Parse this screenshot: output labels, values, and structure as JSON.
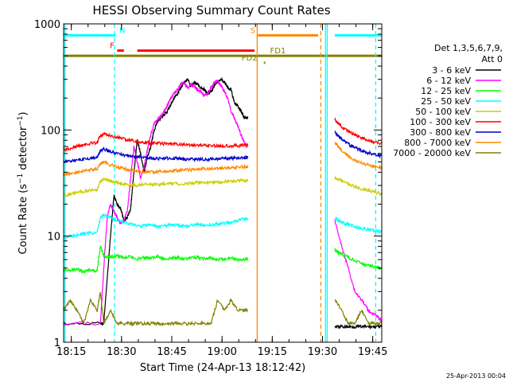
{
  "chart_data": {
    "type": "line",
    "title": "HESSI Observing Summary Count Rates",
    "xlabel": "Start Time (24-Apr-13 18:12:42)",
    "ylabel": "Count Rate (s⁻¹ detector⁻¹)",
    "ylabel_main": "Count Rate (s",
    "ylabel_mid": " detector",
    "ylabel_end": ")",
    "ylabel_sup": "−1",
    "yscale": "log",
    "xlim": [
      0,
      95
    ],
    "ylim": [
      1,
      1000
    ],
    "x_unit": "minutes after 18:12:42",
    "xticks": [
      {
        "t": 2.3,
        "label": "18:15"
      },
      {
        "t": 17.3,
        "label": "18:30"
      },
      {
        "t": 32.3,
        "label": "18:45"
      },
      {
        "t": 47.3,
        "label": "19:00"
      },
      {
        "t": 62.3,
        "label": "19:15"
      },
      {
        "t": 77.3,
        "label": "19:30"
      },
      {
        "t": 92.3,
        "label": "19:45"
      }
    ],
    "yticks": [
      {
        "v": 1,
        "label": "1"
      },
      {
        "v": 10,
        "label": "10"
      },
      {
        "v": 100,
        "label": "100"
      },
      {
        "v": 1000,
        "label": "1000"
      }
    ],
    "legend": {
      "position": "right",
      "header": [
        "Det 1,3,5,6,7,9,",
        "Att 0"
      ]
    },
    "series": [
      {
        "name": "3 - 6 keV",
        "color": "#000000",
        "segments": [
          {
            "x": [
              0,
              11,
              12,
              14,
              15,
              16,
              17,
              18,
              19,
              20,
              21,
              22,
              23,
              24,
              25,
              26,
              27,
              28,
              29,
              30,
              31,
              32,
              33,
              34,
              35,
              36,
              37,
              38,
              39,
              40,
              41,
              42,
              43,
              44,
              45,
              46,
              47,
              48,
              49,
              50,
              51,
              52,
              53,
              54,
              55
            ],
            "y": [
              1.5,
              1.5,
              1.5,
              10,
              24,
              20,
              18,
              14,
              15,
              18,
              40,
              80,
              60,
              40,
              55,
              70,
              100,
              120,
              130,
              140,
              150,
              175,
              200,
              220,
              250,
              280,
              300,
              260,
              280,
              270,
              250,
              240,
              220,
              230,
              260,
              290,
              300,
              280,
              250,
              240,
              180,
              170,
              150,
              130,
              130
            ]
          },
          {
            "x": [
              81,
              83,
              85,
              87,
              89,
              91,
              93,
              95
            ],
            "y": [
              1.4,
              1.4,
              1.4,
              1.4,
              1.4,
              1.4,
              1.4,
              1.4
            ]
          }
        ]
      },
      {
        "name": "6 - 12 keV",
        "color": "#ff00ff",
        "segments": [
          {
            "x": [
              0,
              11,
              12,
              13,
              14,
              15,
              16,
              17,
              18,
              19,
              20,
              21,
              22,
              23,
              24,
              25,
              26,
              27,
              28,
              29,
              30,
              31,
              32,
              33,
              34,
              35,
              36,
              37,
              38,
              39,
              40,
              41,
              42,
              43,
              44,
              45,
              46,
              47,
              48,
              49,
              50,
              51,
              52,
              53,
              54,
              55
            ],
            "y": [
              1.5,
              1.5,
              5,
              15,
              20,
              17,
              15,
              13,
              14,
              17,
              35,
              70,
              50,
              35,
              45,
              65,
              90,
              115,
              125,
              135,
              150,
              170,
              200,
              220,
              240,
              270,
              280,
              250,
              270,
              260,
              240,
              230,
              210,
              220,
              250,
              280,
              290,
              260,
              230,
              200,
              150,
              130,
              110,
              90,
              75,
              70
            ]
          },
          {
            "x": [
              81,
              83,
              85,
              87,
              89,
              91,
              93,
              95
            ],
            "y": [
              14,
              8,
              5,
              3,
              2.5,
              2,
              1.8,
              1.6
            ]
          }
        ]
      },
      {
        "name": "12 - 25 keV",
        "color": "#00ff00",
        "segments": [
          {
            "x": [
              0,
              2,
              4,
              6,
              8,
              10,
              11,
              12,
              14,
              16,
              18,
              20,
              22,
              24,
              26,
              28,
              30,
              32,
              34,
              36,
              38,
              40,
              42,
              44,
              46,
              48,
              50,
              52,
              54,
              55
            ],
            "y": [
              4.8,
              4.7,
              4.9,
              4.6,
              4.8,
              4.7,
              8,
              6.5,
              6.3,
              6.5,
              6.2,
              6.4,
              6.1,
              6.3,
              6.2,
              6.4,
              6.1,
              6.2,
              6.3,
              6.0,
              6.2,
              6.3,
              6.1,
              6.2,
              6.0,
              6.1,
              6.2,
              6.0,
              6.1,
              6.0
            ]
          },
          {
            "x": [
              81,
              82,
              83,
              85,
              87,
              89,
              91,
              93,
              95
            ],
            "y": [
              7.5,
              7,
              6.8,
              6.3,
              5.9,
              5.5,
              5.3,
              5.1,
              5.0
            ]
          }
        ]
      },
      {
        "name": "25 - 50 keV",
        "color": "#00ffff",
        "segments": [
          {
            "x": [
              0,
              2,
              4,
              6,
              8,
              10,
              11,
              12,
              14,
              16,
              18,
              20,
              22,
              24,
              26,
              28,
              30,
              32,
              34,
              36,
              38,
              40,
              42,
              44,
              46,
              48,
              50,
              52,
              54,
              55
            ],
            "y": [
              9.5,
              10,
              10.3,
              10.6,
              10.8,
              10.7,
              15,
              16,
              15,
              14,
              13.5,
              13,
              12.5,
              12.5,
              12.8,
              12.3,
              12.5,
              12.7,
              12.6,
              12.4,
              12.6,
              12.9,
              12.6,
              12.8,
              13,
              13.2,
              13.5,
              14,
              14.5,
              14.5
            ]
          },
          {
            "x": [
              81,
              82,
              83,
              85,
              87,
              89,
              91,
              93,
              95
            ],
            "y": [
              15,
              14,
              13.5,
              12.8,
              12.3,
              11.8,
              11.5,
              11.2,
              11
            ]
          }
        ]
      },
      {
        "name": "50 - 100 keV",
        "color": "#cccc00",
        "segments": [
          {
            "x": [
              0,
              2,
              4,
              6,
              8,
              10,
              11,
              12,
              14,
              16,
              18,
              20,
              22,
              24,
              26,
              28,
              30,
              32,
              34,
              36,
              38,
              40,
              42,
              44,
              46,
              48,
              50,
              52,
              54,
              55
            ],
            "y": [
              24,
              25,
              26,
              26.5,
              27,
              27,
              33,
              35,
              33,
              32,
              31,
              30,
              30,
              30.5,
              31,
              30.5,
              31,
              31.5,
              31,
              31,
              31.5,
              32,
              31.5,
              32,
              32,
              32.5,
              33,
              33,
              33.5,
              33
            ]
          },
          {
            "x": [
              81,
              82,
              83,
              85,
              87,
              89,
              91,
              93,
              95
            ],
            "y": [
              35,
              34,
              33,
              31,
              29,
              28,
              27,
              26,
              25
            ]
          }
        ]
      },
      {
        "name": "100 - 300 keV",
        "color": "#ff0000",
        "segments": [
          {
            "x": [
              0,
              2,
              4,
              6,
              8,
              10,
              11,
              12,
              14,
              16,
              18,
              20,
              22,
              24,
              26,
              28,
              30,
              32,
              34,
              36,
              38,
              40,
              42,
              44,
              46,
              48,
              50,
              52,
              54,
              55
            ],
            "y": [
              65,
              67,
              70,
              72,
              75,
              76,
              88,
              92,
              88,
              85,
              82,
              80,
              78,
              76,
              75,
              75,
              74,
              74,
              73,
              73,
              72,
              72,
              72,
              71,
              71,
              71,
              71,
              71,
              72,
              72
            ]
          },
          {
            "x": [
              81,
              82,
              83,
              85,
              87,
              89,
              91,
              93,
              95
            ],
            "y": [
              125,
              115,
              108,
              98,
              90,
              84,
              80,
              77,
              75
            ]
          }
        ]
      },
      {
        "name": "300 - 800 keV",
        "color": "#0000cc",
        "segments": [
          {
            "x": [
              0,
              2,
              4,
              6,
              8,
              10,
              11,
              12,
              14,
              16,
              18,
              20,
              22,
              24,
              26,
              28,
              30,
              32,
              34,
              36,
              38,
              40,
              42,
              44,
              46,
              48,
              50,
              52,
              54,
              55
            ],
            "y": [
              50,
              51,
              52,
              53,
              54,
              55,
              64,
              66,
              63,
              60,
              58,
              57,
              56,
              55,
              55,
              54,
              54,
              54,
              54,
              53,
              53,
              53,
              53,
              53,
              53,
              54,
              54,
              55,
              55,
              55
            ]
          },
          {
            "x": [
              81,
              82,
              83,
              85,
              87,
              89,
              91,
              93,
              95
            ],
            "y": [
              95,
              88,
              82,
              74,
              68,
              64,
              61,
              59,
              57
            ]
          }
        ]
      },
      {
        "name": "800 - 7000 keV",
        "color": "#ff8800",
        "segments": [
          {
            "x": [
              0,
              2,
              4,
              6,
              8,
              10,
              11,
              12,
              14,
              16,
              18,
              20,
              22,
              24,
              26,
              28,
              30,
              32,
              34,
              36,
              38,
              40,
              42,
              44,
              46,
              48,
              50,
              52,
              54,
              55
            ],
            "y": [
              38,
              39,
              40,
              41,
              42,
              43,
              48,
              50,
              47,
              45,
              43,
              42,
              41,
              40,
              40,
              40.5,
              41,
              41,
              41.5,
              42,
              42,
              42.5,
              43,
              43,
              43.5,
              44,
              44,
              44.5,
              45,
              45
            ]
          },
          {
            "x": [
              81,
              82,
              83,
              85,
              87,
              89,
              91,
              93,
              95
            ],
            "y": [
              75,
              70,
              64,
              57,
              52,
              49,
              47,
              45,
              44
            ]
          }
        ]
      },
      {
        "name": "7000 - 20000 keV",
        "color": "#808000",
        "segments": [
          {
            "x": [
              0,
              2,
              4,
              6,
              8,
              10,
              11,
              12,
              14,
              16,
              18,
              20,
              22,
              24,
              26,
              28,
              30,
              32,
              34,
              36,
              38,
              40,
              42,
              44,
              46,
              48,
              50,
              52,
              54,
              55
            ],
            "y": [
              2,
              2.5,
              2,
              1.5,
              2.5,
              2,
              3,
              1.5,
              2,
              1.5,
              1.5,
              1.5,
              1.5,
              1.5,
              1.5,
              1.5,
              1.5,
              1.5,
              1.5,
              1.5,
              1.5,
              1.5,
              1.5,
              1.5,
              2.5,
              2,
              2.5,
              2,
              2,
              2
            ]
          },
          {
            "x": [
              81,
              83,
              85,
              87,
              89,
              91,
              93,
              95
            ],
            "y": [
              2.5,
              2,
              1.5,
              1.5,
              2,
              1.5,
              1.5,
              1.5
            ]
          }
        ]
      }
    ],
    "flags": [
      {
        "label": "N",
        "color": "#00ffff",
        "y": 780,
        "segments": [
          [
            0,
            15.5
          ],
          [
            81,
            95
          ]
        ],
        "label_x": 17.5
      },
      {
        "label": "F",
        "color": "#ff0000",
        "y": 560,
        "segments": [
          [
            16,
            18
          ],
          [
            22,
            57
          ]
        ],
        "label_x": 14.5
      },
      {
        "label": "S",
        "color": "#ff8800",
        "y": 780,
        "segments": [
          [
            58,
            76
          ]
        ],
        "label_x": 56.5
      },
      {
        "label": "FD1",
        "color": "#808000",
        "y": 500,
        "segments": [
          [
            0,
            95
          ]
        ],
        "label_x": 64
      },
      {
        "label": "FD2",
        "color": "#808000",
        "y": 430,
        "segments": [
          [
            59.8,
            60.2
          ]
        ],
        "label_x": 55.5
      }
    ],
    "vlines": [
      {
        "x": 0.4,
        "color": "#00ffff",
        "style": "solid"
      },
      {
        "x": 15.2,
        "color": "#00ffff",
        "style": "dashed"
      },
      {
        "x": 78.2,
        "color": "#00ffff",
        "style": "solid"
      },
      {
        "x": 78.7,
        "color": "#00ffff",
        "style": "solid"
      },
      {
        "x": 93.2,
        "color": "#00ffff",
        "style": "dashed"
      },
      {
        "x": 57.8,
        "color": "#ff8800",
        "style": "solid"
      },
      {
        "x": 76.8,
        "color": "#ff8800",
        "style": "dashed"
      }
    ],
    "timestamp": "25-Apr-2013 00:04"
  }
}
